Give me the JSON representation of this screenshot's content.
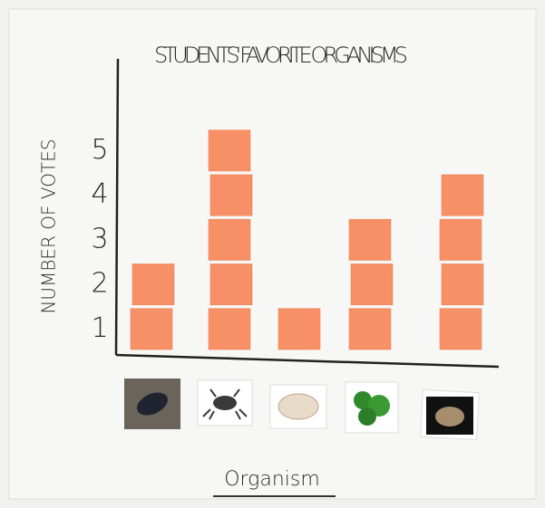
{
  "chart_data": {
    "type": "bar",
    "title": "STUDENTS' FAVORITE ORGANISMS",
    "y_label": "NUMBER OF VOTES",
    "x_label": "Organism",
    "categories": [
      null,
      null,
      null,
      null,
      null
    ],
    "values": [
      2,
      5,
      1,
      3,
      4
    ],
    "color": "#f79066",
    "ylim": [
      0,
      5.5
    ],
    "yticks": [
      1,
      2,
      3,
      4,
      5
    ],
    "grid": false
  }
}
